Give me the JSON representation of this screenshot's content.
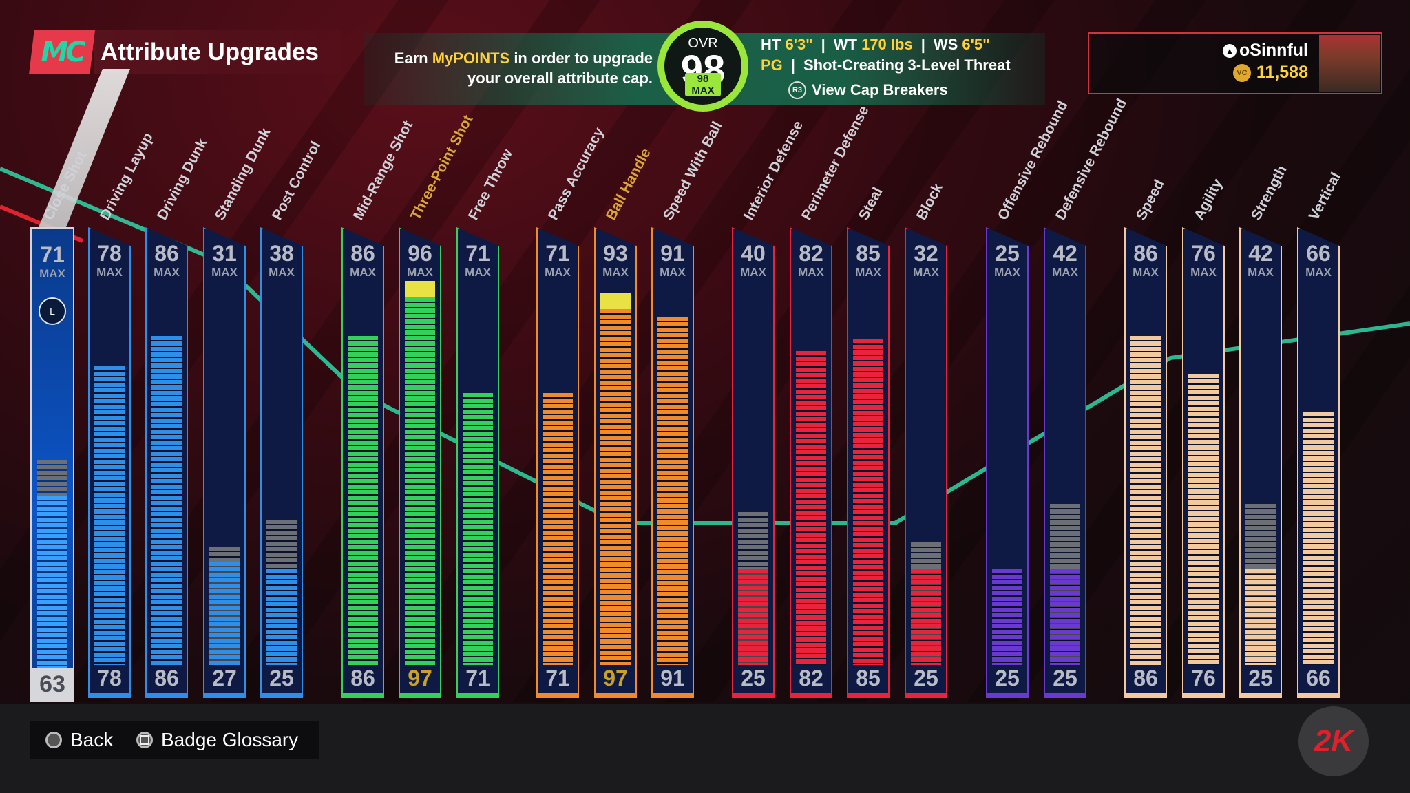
{
  "header": {
    "logo_text": "MC",
    "title": "Attribute Upgrades",
    "promo_prefix": "Earn ",
    "promo_highlight": "MyPOINTS",
    "promo_suffix": " in order to upgrade",
    "promo_line2": "your overall attribute cap.",
    "ovr_label": "OVR",
    "ovr_value": "98",
    "ovr_max": "98 MAX",
    "ht_label": "HT",
    "ht_value": "6'3\"",
    "wt_label": "WT",
    "wt_value": "170 lbs",
    "ws_label": "WS",
    "ws_value": "6'5\"",
    "position": "PG",
    "archetype": "Shot-Creating 3-Level Threat",
    "cap_button_icon": "R3",
    "cap_button": "View Cap Breakers",
    "separator": "|"
  },
  "user": {
    "name": "oSinnful",
    "vc": "11,588",
    "vc_icon": "VC",
    "platform_icon": "playstation-icon"
  },
  "close_shot": {
    "label": "Close Shot",
    "max": "71",
    "max_label": "MAX",
    "current": "63",
    "icon_letter": "L"
  },
  "attributes": [
    {
      "label": "Driving Layup",
      "max": "78",
      "max_label": "MAX",
      "current": "78",
      "fill": 78,
      "color": "#2f8fe8",
      "grey": 0
    },
    {
      "label": "Driving Dunk",
      "max": "86",
      "max_label": "MAX",
      "current": "86",
      "fill": 86,
      "color": "#2f8fe8",
      "grey": 0
    },
    {
      "label": "Standing Dunk",
      "max": "31",
      "max_label": "MAX",
      "current": "27",
      "fill": 27,
      "color": "#2f8fe8",
      "grey": 31
    },
    {
      "label": "Post Control",
      "max": "38",
      "max_label": "MAX",
      "current": "25",
      "fill": 25,
      "color": "#2f8fe8",
      "grey": 38
    },
    {
      "label": "Mid-Range Shot",
      "max": "86",
      "max_label": "MAX",
      "current": "86",
      "fill": 86,
      "color": "#35d05a",
      "grey": 0
    },
    {
      "label": "Three-Point Shot",
      "max": "96",
      "max_label": "MAX",
      "current": "97",
      "fill": 96,
      "color": "#35d05a",
      "grey": 0,
      "highlight": true
    },
    {
      "label": "Free Throw",
      "max": "71",
      "max_label": "MAX",
      "current": "71",
      "fill": 71,
      "color": "#35d05a",
      "grey": 0
    },
    {
      "label": "Pass Accuracy",
      "max": "71",
      "max_label": "MAX",
      "current": "71",
      "fill": 71,
      "color": "#f08a2c",
      "grey": 0
    },
    {
      "label": "Ball Handle",
      "max": "93",
      "max_label": "MAX",
      "current": "97",
      "fill": 93,
      "color": "#f08a2c",
      "grey": 0,
      "highlight": true
    },
    {
      "label": "Speed With Ball",
      "max": "91",
      "max_label": "MAX",
      "current": "91",
      "fill": 91,
      "color": "#f08a2c",
      "grey": 0
    },
    {
      "label": "Interior Defense",
      "max": "40",
      "max_label": "MAX",
      "current": "25",
      "fill": 25,
      "color": "#e8243d",
      "grey": 40
    },
    {
      "label": "Perimeter Defense",
      "max": "82",
      "max_label": "MAX",
      "current": "82",
      "fill": 82,
      "color": "#e8243d",
      "grey": 0
    },
    {
      "label": "Steal",
      "max": "85",
      "max_label": "MAX",
      "current": "85",
      "fill": 85,
      "color": "#e8243d",
      "grey": 0
    },
    {
      "label": "Block",
      "max": "32",
      "max_label": "MAX",
      "current": "25",
      "fill": 25,
      "color": "#e8243d",
      "grey": 32
    },
    {
      "label": "Offensive Rebound",
      "max": "25",
      "max_label": "MAX",
      "current": "25",
      "fill": 25,
      "color": "#6a3ad0",
      "grey": 0
    },
    {
      "label": "Defensive Rebound",
      "max": "42",
      "max_label": "MAX",
      "current": "25",
      "fill": 25,
      "color": "#6a3ad0",
      "grey": 42
    },
    {
      "label": "Speed",
      "max": "86",
      "max_label": "MAX",
      "current": "86",
      "fill": 86,
      "color": "#f3c9a0",
      "grey": 0
    },
    {
      "label": "Agility",
      "max": "76",
      "max_label": "MAX",
      "current": "76",
      "fill": 76,
      "color": "#f3c9a0",
      "grey": 0
    },
    {
      "label": "Strength",
      "max": "42",
      "max_label": "MAX",
      "current": "25",
      "fill": 25,
      "color": "#f3c9a0",
      "grey": 42
    },
    {
      "label": "Vertical",
      "max": "66",
      "max_label": "MAX",
      "current": "66",
      "fill": 66,
      "color": "#f3c9a0",
      "grey": 0
    }
  ],
  "footer": {
    "back": "Back",
    "glossary": "Badge Glossary",
    "brand": "2K"
  }
}
